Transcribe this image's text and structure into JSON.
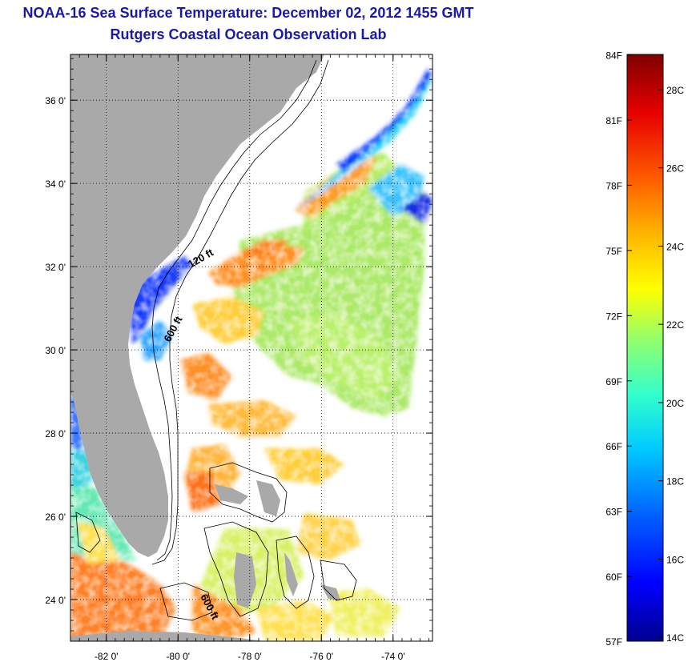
{
  "titles": {
    "line1": "NOAA-16 Sea Surface Temperature:  December 02, 2012 1455 GMT",
    "line2": "Rutgers Coastal Ocean Observation Lab"
  },
  "map": {
    "lat_labels": [
      "36 0'",
      "34 0'",
      "32 0'",
      "30 0'",
      "28 0'",
      "26 0'",
      "24 0'"
    ],
    "lon_labels": [
      "-82 0'",
      "-80 0'",
      "-78 0'",
      "-76 0'",
      "-74 0'"
    ],
    "lat_values": [
      36,
      34,
      32,
      30,
      28,
      26,
      24
    ],
    "lon_values": [
      -82,
      -80,
      -78,
      -76,
      -74
    ],
    "lon_range": [
      -83.0,
      -72.9
    ],
    "lat_range": [
      23.0,
      37.1
    ],
    "contour_labels": {
      "depth_120": "120 ft",
      "depth_600_north": "600 ft",
      "depth_600_south": "600 ft"
    },
    "colors": {
      "land": "#a9a9a9",
      "no_data": "#ffffff"
    }
  },
  "colorbar": {
    "fahrenheit_labels": [
      "84F",
      "81F",
      "78F",
      "75F",
      "72F",
      "69F",
      "66F",
      "63F",
      "60F",
      "57F"
    ],
    "fahrenheit_values": [
      84,
      81,
      78,
      75,
      72,
      69,
      66,
      63,
      60,
      57
    ],
    "celsius_labels": [
      "28C",
      "26C",
      "24C",
      "22C",
      "20C",
      "18C",
      "16C",
      "14C"
    ],
    "celsius_values": [
      28,
      26,
      24,
      22,
      20,
      18,
      16,
      14
    ],
    "range_celsius": [
      13.9,
      28.9
    ],
    "stops": [
      "#00008f",
      "#0000ff",
      "#0066ff",
      "#00ccff",
      "#33ffcc",
      "#99ff66",
      "#ffff00",
      "#ffb000",
      "#ff5a00",
      "#e60000",
      "#800000"
    ]
  }
}
